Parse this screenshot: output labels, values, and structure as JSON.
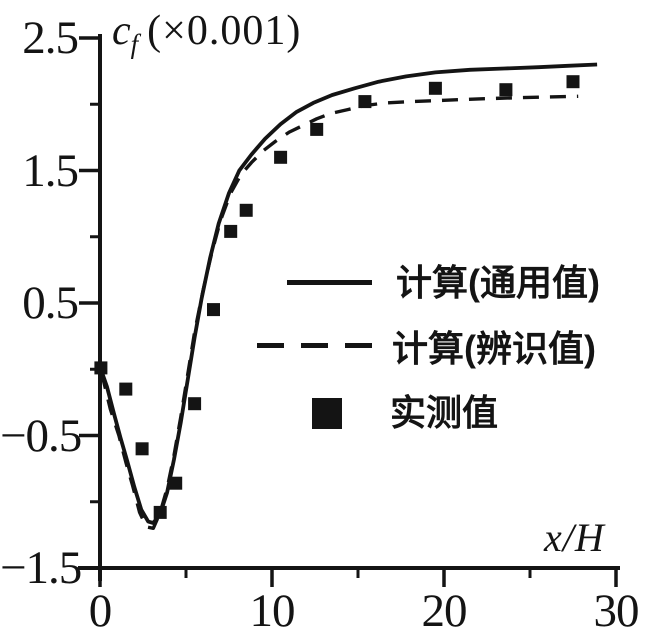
{
  "figure": {
    "background": "#ffffff",
    "ink_color": "#141414"
  },
  "chart_data": {
    "type": "line",
    "title": "",
    "ylabel_symbol": "c",
    "ylabel_subscript": "f",
    "ylabel_units": "(×0.001)",
    "xlabel": "x/H",
    "xlim": [
      0,
      30
    ],
    "ylim": [
      -1.5,
      2.5
    ],
    "grid": false,
    "legend_position": "inside-right-middle",
    "x_major_ticks": [
      0,
      10,
      20,
      30
    ],
    "x_major_tick_labels": [
      "0",
      "10",
      "20",
      "30"
    ],
    "x_minor_ticks": [
      5,
      15,
      25
    ],
    "y_major_ticks": [
      2.5,
      1.5,
      0.5,
      -0.5,
      -1.5
    ],
    "y_major_tick_labels": [
      "2.5",
      "1.5",
      "0.5",
      "−0.5",
      "−1.5"
    ],
    "y_minor_ticks": [
      2,
      1,
      0,
      -1
    ],
    "series": [
      {
        "name": "计算(通用值)",
        "type": "line",
        "style": "solid",
        "points": [
          [
            0.05,
            0.0
          ],
          [
            0.4,
            -0.13
          ],
          [
            0.8,
            -0.33
          ],
          [
            1.2,
            -0.52
          ],
          [
            1.6,
            -0.7
          ],
          [
            2.0,
            -0.89
          ],
          [
            2.4,
            -1.06
          ],
          [
            2.8,
            -1.15
          ],
          [
            3.1,
            -1.16
          ],
          [
            3.5,
            -1.09
          ],
          [
            3.9,
            -0.93
          ],
          [
            4.3,
            -0.68
          ],
          [
            4.7,
            -0.4
          ],
          [
            5.1,
            -0.08
          ],
          [
            5.5,
            0.24
          ],
          [
            5.9,
            0.53
          ],
          [
            6.4,
            0.84
          ],
          [
            6.9,
            1.1
          ],
          [
            7.5,
            1.33
          ],
          [
            8.1,
            1.5
          ],
          [
            8.8,
            1.62
          ],
          [
            9.6,
            1.74
          ],
          [
            10.5,
            1.85
          ],
          [
            11.4,
            1.94
          ],
          [
            12.4,
            2.01
          ],
          [
            13.5,
            2.07
          ],
          [
            14.8,
            2.12
          ],
          [
            16.2,
            2.17
          ],
          [
            17.8,
            2.21
          ],
          [
            19.5,
            2.24
          ],
          [
            21.5,
            2.26
          ],
          [
            23.5,
            2.27
          ],
          [
            25.5,
            2.28
          ],
          [
            27.2,
            2.29
          ],
          [
            28.9,
            2.3
          ]
        ]
      },
      {
        "name": "计算(辨识值)",
        "type": "line",
        "style": "dashed",
        "points": [
          [
            0.1,
            -0.03
          ],
          [
            0.6,
            -0.3
          ],
          [
            1.1,
            -0.5
          ],
          [
            1.5,
            -0.7
          ],
          [
            1.9,
            -0.88
          ],
          [
            2.3,
            -1.08
          ],
          [
            2.7,
            -1.19
          ],
          [
            3.1,
            -1.2
          ],
          [
            3.5,
            -1.08
          ],
          [
            3.9,
            -0.9
          ],
          [
            4.3,
            -0.65
          ],
          [
            4.7,
            -0.36
          ],
          [
            5.1,
            -0.04
          ],
          [
            5.5,
            0.28
          ],
          [
            6.0,
            0.6
          ],
          [
            6.5,
            0.88
          ],
          [
            7.0,
            1.12
          ],
          [
            7.6,
            1.33
          ],
          [
            8.2,
            1.47
          ],
          [
            8.8,
            1.56
          ],
          [
            9.5,
            1.65
          ],
          [
            10.2,
            1.72
          ],
          [
            11.0,
            1.79
          ],
          [
            11.8,
            1.84
          ],
          [
            12.6,
            1.89
          ],
          [
            13.4,
            1.93
          ],
          [
            14.4,
            1.96
          ],
          [
            15.4,
            1.99
          ],
          [
            16.6,
            2.01
          ],
          [
            18.0,
            2.02
          ],
          [
            20.0,
            2.03
          ],
          [
            22.0,
            2.04
          ],
          [
            24.5,
            2.05
          ],
          [
            27.8,
            2.06
          ]
        ]
      },
      {
        "name": "实测值",
        "type": "scatter",
        "marker": "filled-square",
        "points": [
          [
            0.05,
            0.01
          ],
          [
            1.5,
            -0.15
          ],
          [
            2.45,
            -0.6
          ],
          [
            3.5,
            -1.08
          ],
          [
            4.4,
            -0.86
          ],
          [
            5.5,
            -0.26
          ],
          [
            6.6,
            0.45
          ],
          [
            7.6,
            1.04
          ],
          [
            8.5,
            1.2
          ],
          [
            10.5,
            1.6
          ],
          [
            12.6,
            1.81
          ],
          [
            15.4,
            2.02
          ],
          [
            19.5,
            2.12
          ],
          [
            23.6,
            2.11
          ],
          [
            27.5,
            2.17
          ]
        ]
      }
    ]
  }
}
